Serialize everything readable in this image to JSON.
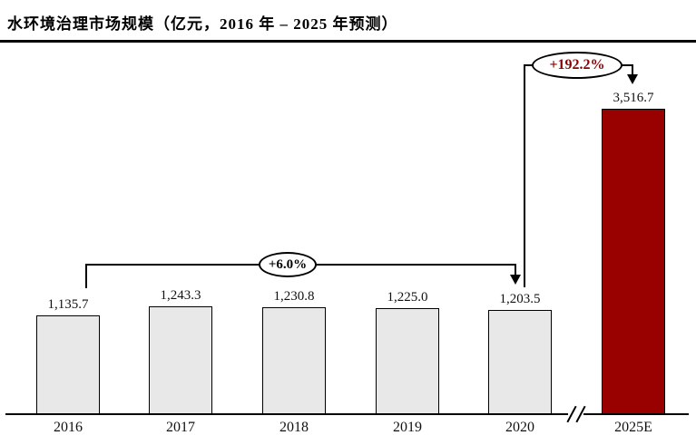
{
  "title": "水环境治理市场规模（亿元，2016 年 – 2025 年预测）",
  "chart_data": {
    "type": "bar",
    "title": "水环境治理市场规模（亿元，2016 年 – 2025 年预测）",
    "categories": [
      "2016",
      "2017",
      "2018",
      "2019",
      "2020",
      "2025E"
    ],
    "values": [
      1135.7,
      1243.3,
      1230.8,
      1225.0,
      1203.5,
      3516.7
    ],
    "value_labels": [
      "1,135.7",
      "1,243.3",
      "1,230.8",
      "1,225.0",
      "1,203.5",
      "3,516.7"
    ],
    "bar_colors": [
      "#e8e8e8",
      "#e8e8e8",
      "#e8e8e8",
      "#e8e8e8",
      "#e8e8e8",
      "#990000"
    ],
    "xlabel": "",
    "ylabel": "",
    "ylim": [
      0,
      3700
    ],
    "grid": false,
    "legend": false,
    "axis_break_between": [
      "2020",
      "2025E"
    ],
    "annotations": [
      {
        "label": "+6.0%",
        "color": "#000000",
        "from": "2016",
        "to": "2020",
        "style": "ellipse-bracket-arrow"
      },
      {
        "label": "+192.2%",
        "color": "#8b0000",
        "from": "2020",
        "to": "2025E",
        "style": "ellipse-bracket-arrow"
      }
    ]
  },
  "colors": {
    "bar_default": "#e8e8e8",
    "bar_forecast": "#990000",
    "annotation_growth_text": "#8b0000",
    "text": "#111111"
  }
}
